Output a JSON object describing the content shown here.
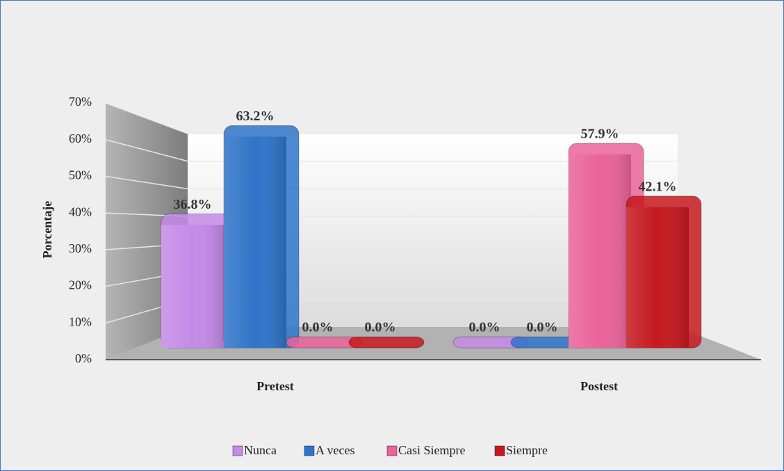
{
  "chart_data": {
    "type": "bar3d",
    "y_label": "Porcentaje",
    "categories": [
      "Pretest",
      "Postest"
    ],
    "series": [
      {
        "name": "Nunca",
        "color": "#c58ae8",
        "values": [
          36.8,
          0.0
        ],
        "value_labels": [
          "36.8%",
          "0.0%"
        ]
      },
      {
        "name": "A veces",
        "color": "#2f74c9",
        "values": [
          63.2,
          0.0
        ],
        "value_labels": [
          "63.2%",
          "0.0%"
        ]
      },
      {
        "name": "Casi Siempre",
        "color": "#ea6399",
        "values": [
          0.0,
          57.9
        ],
        "value_labels": [
          "0.0%",
          "57.9%"
        ]
      },
      {
        "name": "Siempre",
        "color": "#c5191f",
        "values": [
          0.0,
          42.1
        ],
        "value_labels": [
          "0.0%",
          "42.1%"
        ]
      }
    ],
    "ylim": [
      0,
      70
    ],
    "yticks": [
      {
        "value": 0,
        "label": "0%"
      },
      {
        "value": 10,
        "label": "10%"
      },
      {
        "value": 20,
        "label": "20%"
      },
      {
        "value": 30,
        "label": "30%"
      },
      {
        "value": 40,
        "label": "40%"
      },
      {
        "value": 50,
        "label": "50%"
      },
      {
        "value": 60,
        "label": "60%"
      },
      {
        "value": 70,
        "label": "70%"
      }
    ],
    "grid": true,
    "legend": "bottom"
  }
}
